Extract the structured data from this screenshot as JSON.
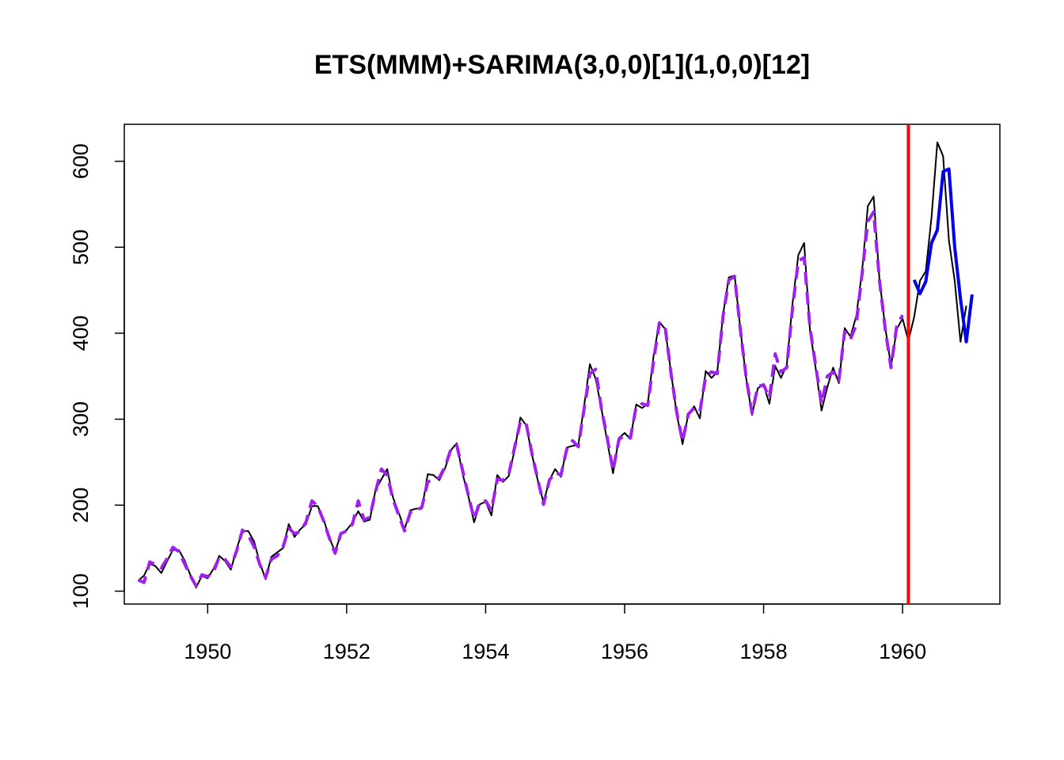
{
  "chart_data": {
    "type": "line",
    "title": "ETS(MMM)+SARIMA(3,0,0)[1](1,0,0)[12]",
    "xlabel": "",
    "ylabel": "",
    "xlim": [
      1948.8,
      1961.4
    ],
    "ylim": [
      85,
      643
    ],
    "x_ticks": [
      1950,
      1952,
      1954,
      1956,
      1958,
      1960
    ],
    "y_ticks": [
      100,
      200,
      300,
      400,
      500,
      600
    ],
    "grid": false,
    "legend": "none",
    "start": 1949,
    "frequency": 12,
    "split_x": 1960.0833,
    "series": [
      {
        "role": "actual",
        "color": "#000000",
        "values": [
          112,
          118,
          132,
          129,
          121,
          135,
          148,
          148,
          136,
          119,
          104,
          118,
          115,
          126,
          141,
          135,
          125,
          149,
          170,
          170,
          158,
          133,
          114,
          140,
          145,
          150,
          178,
          163,
          172,
          178,
          199,
          199,
          184,
          162,
          146,
          166,
          171,
          180,
          193,
          181,
          183,
          218,
          230,
          242,
          209,
          191,
          172,
          194,
          196,
          196,
          236,
          235,
          229,
          243,
          264,
          272,
          237,
          211,
          180,
          201,
          204,
          188,
          235,
          227,
          234,
          264,
          302,
          293,
          259,
          229,
          203,
          229,
          242,
          233,
          267,
          269,
          270,
          315,
          364,
          347,
          312,
          274,
          237,
          278,
          284,
          277,
          317,
          313,
          318,
          374,
          413,
          405,
          355,
          306,
          271,
          306,
          315,
          301,
          356,
          348,
          355,
          422,
          465,
          467,
          404,
          347,
          305,
          336,
          340,
          318,
          362,
          348,
          363,
          435,
          491,
          505,
          404,
          359,
          310,
          337,
          360,
          342,
          406,
          396,
          420,
          472,
          548,
          559,
          463,
          407,
          362,
          405,
          417,
          391,
          419,
          461,
          472,
          535,
          622,
          606,
          508,
          461,
          390,
          432
        ]
      },
      {
        "role": "fitted",
        "color": "#a020f0",
        "values": [
          113,
          110,
          134,
          131,
          127,
          138,
          151,
          146,
          132,
          118,
          106,
          119,
          117,
          122,
          140,
          137,
          128,
          147,
          171,
          165,
          152,
          131,
          116,
          137,
          141,
          151,
          173,
          167,
          169,
          181,
          205,
          199,
          182,
          162,
          144,
          167,
          170,
          178,
          205,
          183,
          186,
          216,
          242,
          235,
          207,
          188,
          170,
          192,
          193,
          198,
          227,
          230,
          232,
          245,
          265,
          270,
          241,
          212,
          184,
          204,
          205,
          194,
          230,
          229,
          236,
          267,
          297,
          295,
          260,
          230,
          201,
          229,
          238,
          235,
          265,
          275,
          268,
          312,
          353,
          358,
          312,
          278,
          240,
          276,
          282,
          278,
          315,
          318,
          316,
          368,
          412,
          407,
          354,
          308,
          274,
          306,
          313,
          309,
          350,
          355,
          353,
          420,
          462,
          466,
          403,
          348,
          307,
          338,
          340,
          325,
          376,
          355,
          360,
          430,
          484,
          488,
          407,
          362,
          318,
          350,
          355,
          345,
          402,
          393,
          410,
          469,
          530,
          541,
          462,
          405,
          360,
          409,
          421
        ]
      },
      {
        "role": "forecast",
        "color": "#0000ee",
        "start": 1960.1667,
        "values": [
          462,
          446,
          460,
          505,
          520,
          588,
          591,
          500,
          440,
          390,
          445
        ]
      }
    ]
  }
}
